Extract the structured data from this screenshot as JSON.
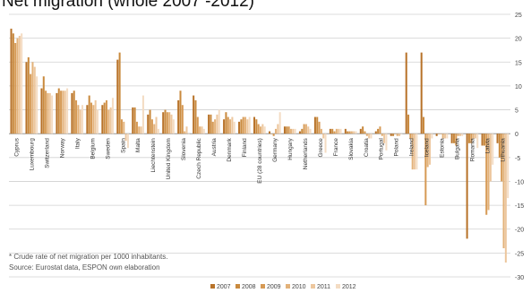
{
  "header": {
    "title": "Net migration (whole 2007 -2012)"
  },
  "notes": {
    "footnote": "* Crude rate of net migration per 1000 inhabitants.",
    "source": "Source: Eurostat data, ESPON own elaboration"
  },
  "chart_data": {
    "type": "bar",
    "title": "",
    "xlabel": "",
    "ylabel": "",
    "ylim": [
      -30,
      25
    ],
    "yticks": [
      25,
      20,
      15,
      10,
      5,
      0,
      -5,
      -10,
      -15,
      -20,
      -25,
      -30
    ],
    "grid": true,
    "legend_position": "bottom",
    "categories": [
      "Cyprus",
      "Luxembourg",
      "Switzerland",
      "Norway",
      "Italy",
      "Belgium",
      "Sweden",
      "Spain",
      "Malta",
      "Liechtenstein",
      "United Kingdom",
      "Slovenia",
      "Czech Republic",
      "Austria",
      "Denmark",
      "Finland",
      "EU (28 countries)",
      "Germany",
      "Hungary",
      "Netherlands",
      "Greece",
      "France",
      "Slovakia",
      "Croatia",
      "Portugal",
      "Poland",
      "Ireland",
      "Iceland",
      "Estonia",
      "Bulgaria",
      "Romania",
      "Latvia",
      "Lithuania"
    ],
    "series": [
      {
        "name": "2007",
        "color": "#b8732a",
        "values": [
          22.0,
          15.0,
          9.5,
          8.5,
          8.5,
          6.0,
          6.0,
          15.5,
          5.5,
          4.0,
          4.5,
          7.0,
          8.0,
          4.0,
          3.0,
          2.5,
          3.5,
          0.5,
          1.5,
          0.5,
          3.5,
          1.0,
          1.0,
          1.0,
          0.5,
          -0.5,
          17.0,
          17.0,
          -0.5,
          -2.0,
          -22.0,
          -2.5,
          -2.0
        ]
      },
      {
        "name": "2008",
        "color": "#c98a3e",
        "values": [
          21.0,
          16.0,
          12.0,
          9.5,
          9.0,
          8.0,
          6.5,
          17.0,
          5.5,
          5.0,
          5.0,
          9.0,
          7.0,
          4.0,
          4.5,
          3.0,
          3.0,
          0.0,
          1.5,
          1.0,
          3.5,
          1.0,
          0.5,
          1.5,
          1.0,
          -0.5,
          4.0,
          3.5,
          0.0,
          -2.0,
          -2.0,
          -2.5,
          -5.0
        ]
      },
      {
        "name": "2009",
        "color": "#d69a55",
        "values": [
          19.0,
          12.5,
          9.0,
          9.0,
          7.0,
          6.5,
          7.0,
          3.0,
          2.5,
          3.0,
          4.5,
          6.0,
          3.5,
          2.5,
          3.5,
          3.5,
          2.0,
          -0.5,
          1.5,
          2.0,
          2.5,
          0.5,
          0.5,
          0.5,
          1.5,
          0.0,
          -1.0,
          -15.0,
          0.0,
          -2.5,
          -2.0,
          -17.0,
          -10.0
        ]
      },
      {
        "name": "2010",
        "color": "#e3b27a",
        "values": [
          20.0,
          15.0,
          8.5,
          9.0,
          6.0,
          6.0,
          5.0,
          2.5,
          1.5,
          2.0,
          4.5,
          0.5,
          1.5,
          3.0,
          3.0,
          3.5,
          1.5,
          1.0,
          1.0,
          2.0,
          1.0,
          1.0,
          0.5,
          -0.5,
          -0.5,
          -0.5,
          -7.5,
          -7.0,
          -1.0,
          -0.5,
          -1.0,
          -16.0,
          -24.0
        ]
      },
      {
        "name": "2011",
        "color": "#edc79e",
        "values": [
          20.5,
          14.0,
          8.5,
          9.0,
          5.0,
          7.0,
          5.5,
          -1.5,
          1.5,
          3.5,
          4.0,
          1.5,
          1.5,
          4.0,
          3.5,
          3.0,
          2.0,
          2.0,
          1.0,
          1.5,
          -1.0,
          1.0,
          0.5,
          -1.0,
          -2.0,
          -0.5,
          -7.5,
          -6.5,
          -1.0,
          -0.5,
          -1.0,
          -10.0,
          -27.0
        ]
      },
      {
        "name": "2012",
        "color": "#f4dcc3",
        "values": [
          21.0,
          12.0,
          8.0,
          9.5,
          6.0,
          5.0,
          7.5,
          -3.0,
          8.0,
          1.0,
          3.0,
          0.0,
          1.0,
          5.0,
          2.5,
          3.5,
          1.5,
          4.5,
          1.0,
          1.0,
          -4.0,
          1.0,
          0.5,
          -1.0,
          -3.5,
          0.0,
          -7.5,
          -1.0,
          -1.0,
          -0.5,
          -3.0,
          -6.5,
          -13.5
        ]
      }
    ]
  }
}
